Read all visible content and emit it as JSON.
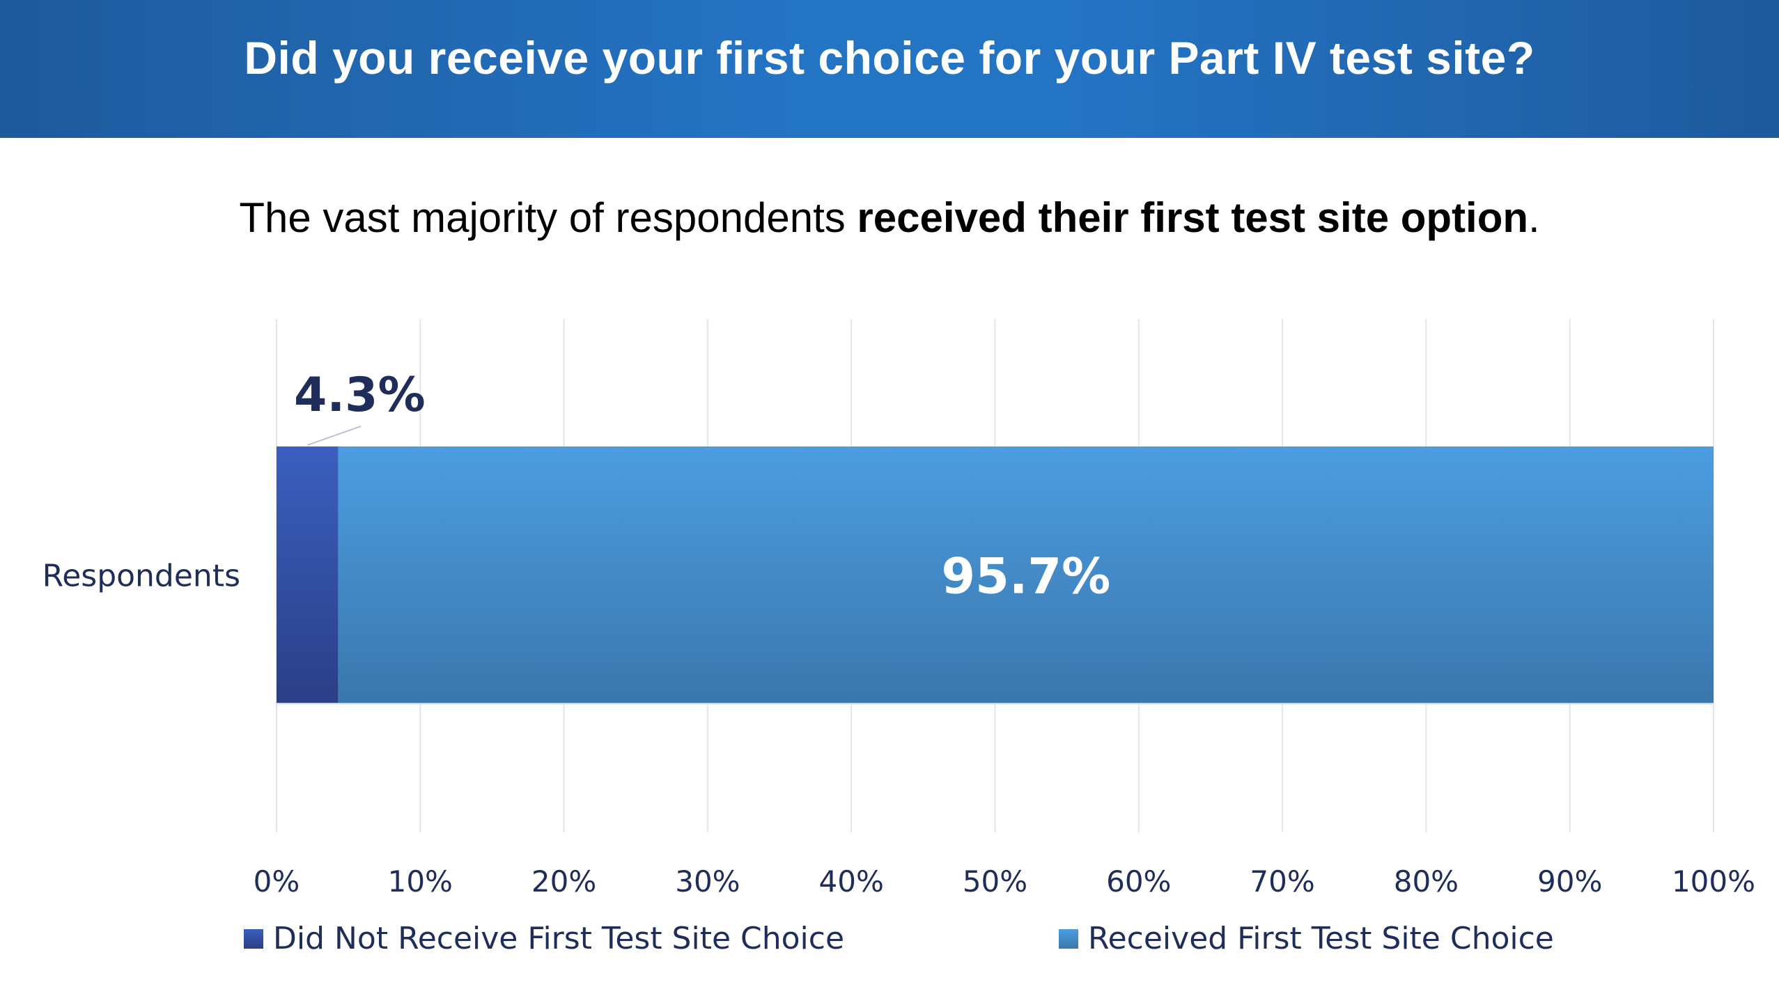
{
  "header": {
    "title": "Did you receive your first choice for your Part IV test site?"
  },
  "subtitle": {
    "prefix": "The vast majority of respondents ",
    "bold": "received their first test site option",
    "suffix": "."
  },
  "colors": {
    "banner": "#2474c4",
    "did_not": "#2f4f9e",
    "received": "#4a96d8",
    "text_dark": "#1f2d5a",
    "grid": "#e3e6ef"
  },
  "chart_data": {
    "type": "bar",
    "orientation": "horizontal",
    "stacked": "100%",
    "categories": [
      "Respondents"
    ],
    "series": [
      {
        "name": "Did Not Receive First Test Site Choice",
        "values": [
          4.3
        ],
        "label": "4.3%"
      },
      {
        "name": "Received First Test Site Choice",
        "values": [
          95.7
        ],
        "label": "95.7%"
      }
    ],
    "xlim": [
      0,
      100
    ],
    "x_ticks": [
      "0%",
      "10%",
      "20%",
      "30%",
      "40%",
      "50%",
      "60%",
      "70%",
      "80%",
      "90%",
      "100%"
    ],
    "grid": true,
    "legend": "bottom"
  }
}
